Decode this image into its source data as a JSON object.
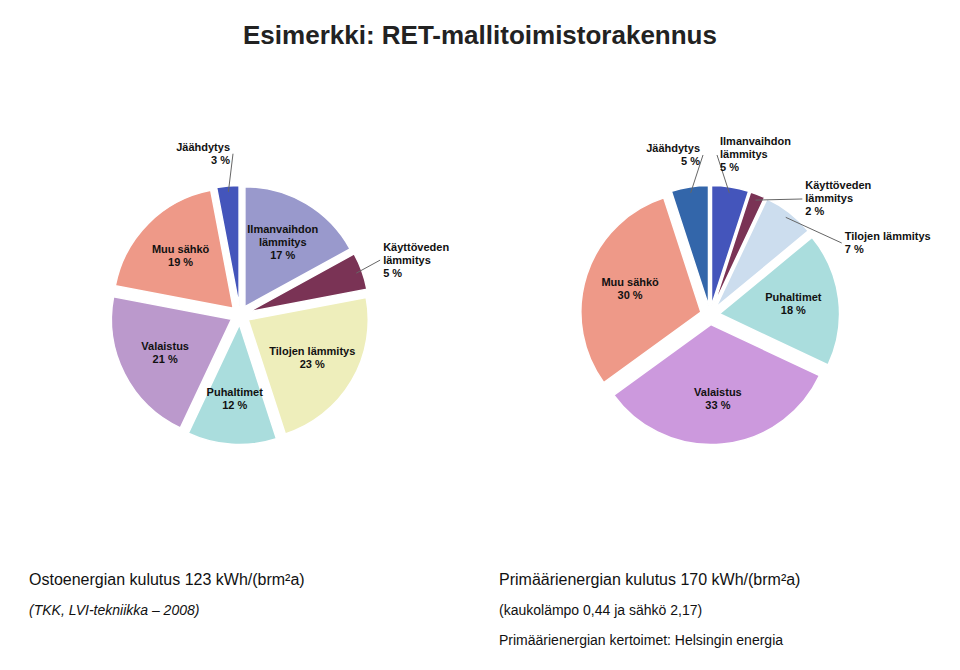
{
  "chart_data": [
    {
      "type": "pie",
      "title": "Esimerkki: RET-mallitoimistorakennus",
      "categories": [
        "Ilmanvaihdon\nlämmitys",
        "Käyttöveden\nlämmitys",
        "Tilojen lämmitys",
        "Puhaltimet",
        "Valaistus",
        "Muu sähkö",
        "Jäähdytys"
      ],
      "values": [
        17,
        5,
        23,
        12,
        21,
        19,
        3
      ],
      "value_labels": [
        "17 %",
        "5 %",
        "23 %",
        "12 %",
        "21 %",
        "19 %",
        "3 %"
      ],
      "colors": [
        "#9999CC",
        "#7A3355",
        "#EEEEBB",
        "#AADDDD",
        "#BB99CC",
        "#EE9988",
        "#4455BB"
      ],
      "data_labels": true,
      "annotations": [
        "Ostoenergian kulutus 123 kWh/(brm²a)",
        "(TKK, LVI-tekniikka – 2008)"
      ]
    },
    {
      "type": "pie",
      "categories": [
        "Ilmanvaihdon\nlämmitys",
        "Käyttöveden\nlämmitys",
        "Tilojen lämmitys",
        "Puhaltimet",
        "Valaistus",
        "Muu sähkö",
        "Jäähdytys"
      ],
      "values": [
        5,
        2,
        7,
        18,
        33,
        30,
        5
      ],
      "value_labels": [
        "5 %",
        "2 %",
        "7 %",
        "18 %",
        "33 %",
        "30 %",
        "5 %"
      ],
      "colors": [
        "#4455BB",
        "#7A3355",
        "#CCDDEE",
        "#AADDDD",
        "#CC99DD",
        "#EE9988",
        "#3366AA"
      ],
      "data_labels": true,
      "annotations": [
        "Primäärienergian kulutus 170 kWh/(brm²a)",
        "(kaukolämpo 0,44 ja sähkö 2,17)",
        "Primäärienergian kertoimet: Helsingin energia"
      ]
    }
  ]
}
